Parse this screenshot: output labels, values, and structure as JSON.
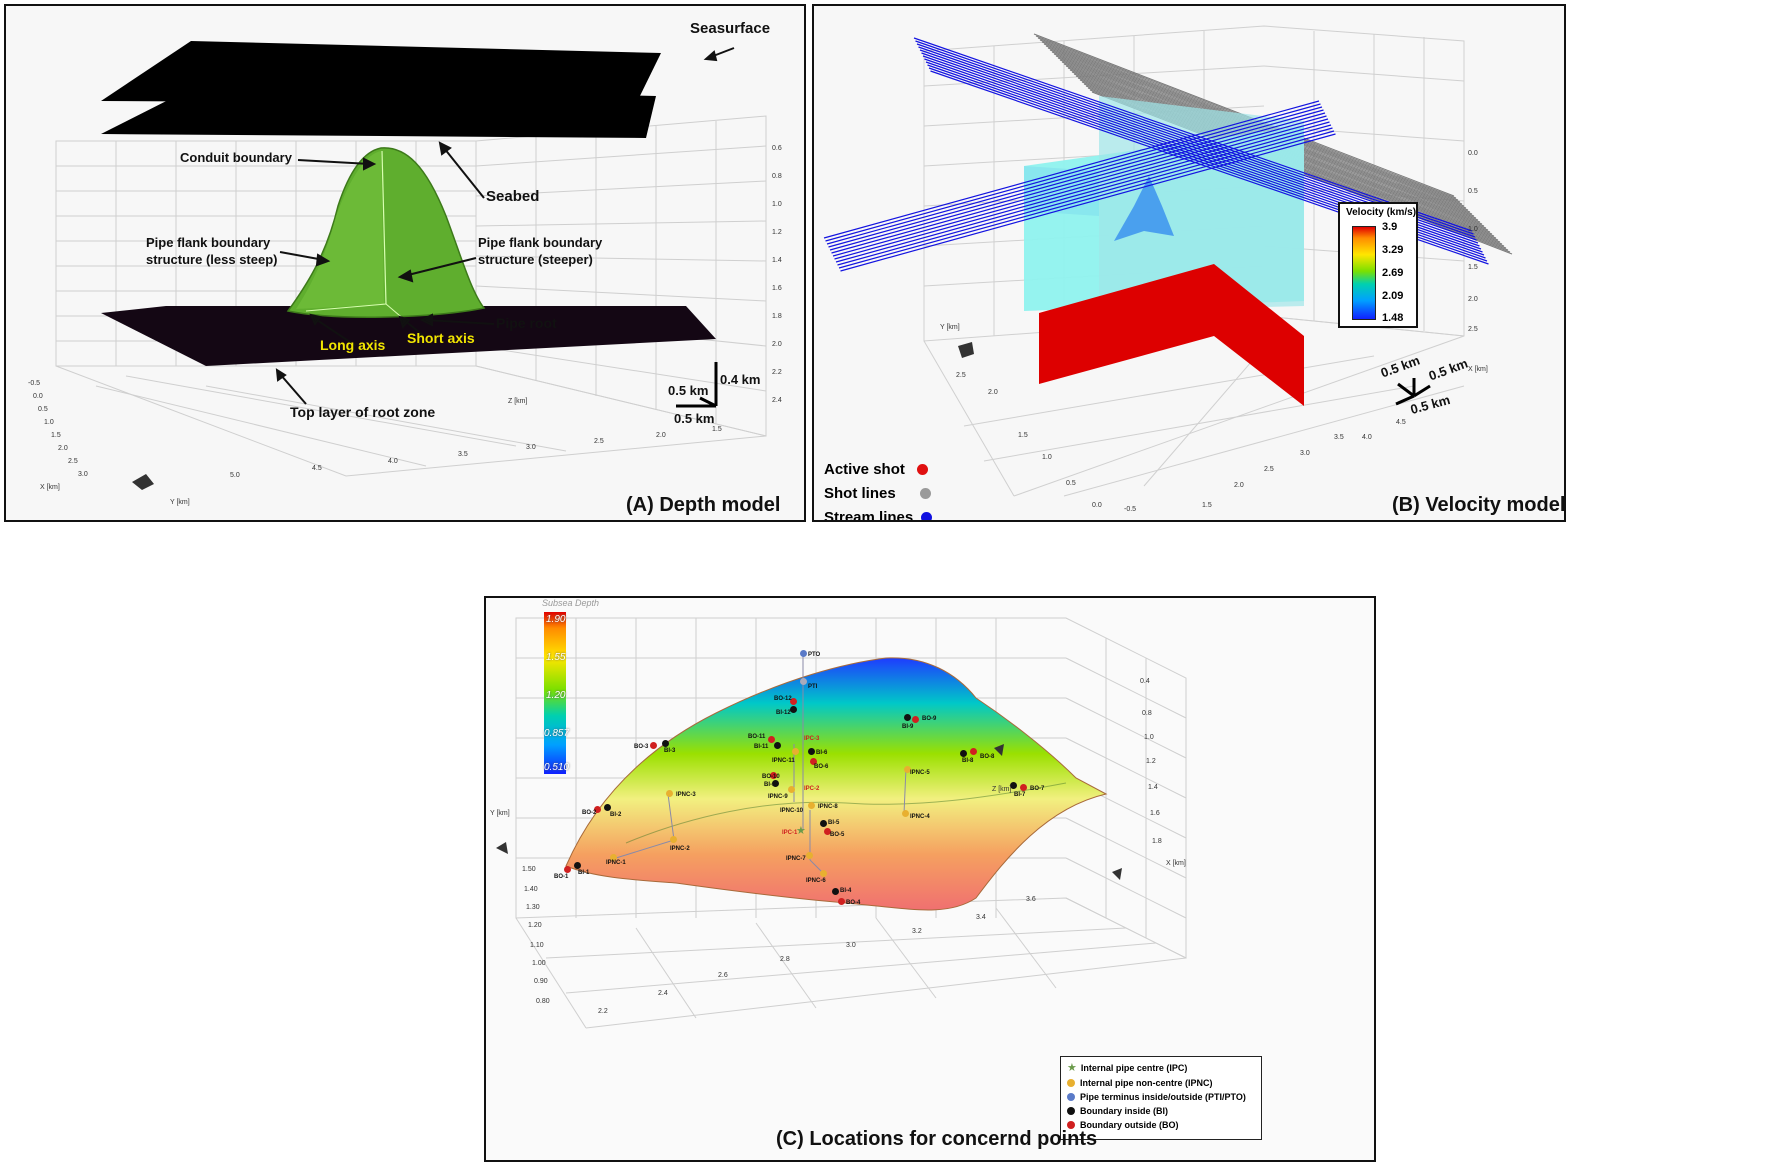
{
  "panel_a": {
    "seasurface": "Seasurface",
    "seabed": "Seabed",
    "conduit_boundary": "Conduit boundary",
    "flank_less_1": "Pipe flank boundary",
    "flank_less_2": "structure (less steep)",
    "flank_steep_1": "Pipe flank boundary",
    "flank_steep_2": "structure (steeper)",
    "pipe_root": "Pipe root",
    "long_axis": "Long axis",
    "short_axis": "Short axis",
    "top_layer": "Top layer of root zone",
    "scale_05_a": "0.5 km",
    "scale_04": "0.4 km",
    "scale_05_b": "0.5 km",
    "z_label": "Z [km]",
    "x_label": "X [km]",
    "y_label": "Y [km]",
    "z_ticks": [
      "0.6",
      "0.8",
      "1.0",
      "1.2",
      "1.4",
      "1.6",
      "1.8",
      "2.0",
      "2.2",
      "2.4"
    ],
    "x_ticks": [
      "-0.5",
      "0.0",
      "0.5",
      "1.0",
      "1.5",
      "2.0",
      "2.5",
      "3.0"
    ],
    "y_ticks": [
      "5.0",
      "4.5",
      "4.0",
      "3.5",
      "3.0",
      "2.5",
      "2.0",
      "1.5"
    ],
    "caption": "(A) Depth model"
  },
  "panel_b": {
    "colorbar_title": "Velocity (km/s)",
    "colorbar_ticks": [
      "3.9",
      "3.29",
      "2.69",
      "2.09",
      "1.48"
    ],
    "legend": [
      {
        "label": "Active shot",
        "color": "#e01010"
      },
      {
        "label": "Shot lines",
        "color": "#9a9a9a"
      },
      {
        "label": "Stream lines",
        "color": "#1010e0"
      }
    ],
    "scale_1": "0.5 km",
    "scale_2": "0.5 km",
    "scale_3": "0.5 km",
    "y_label": "Y [km]",
    "x_label": "X [km]",
    "right_ticks": [
      "0.0",
      "0.5",
      "1.0",
      "1.5",
      "2.0",
      "2.5"
    ],
    "bottom_ticks": [
      "4.5",
      "4.0",
      "3.5",
      "3.0",
      "2.5",
      "2.0",
      "1.5"
    ],
    "left_ticks": [
      "2.5",
      "2.0",
      "1.5",
      "1.0",
      "0.5",
      "0.0",
      "-0.5"
    ],
    "caption": "(B) Velocity model"
  },
  "panel_c": {
    "colorbar_title": "Subsea Depth",
    "colorbar_ticks": [
      "1.90",
      "1.55",
      "1.20",
      "0.857",
      "0.510"
    ],
    "points": {
      "PTO": "PTO",
      "PTI": "PTI",
      "BO12": "BO-12",
      "BI12": "BI-12",
      "IPC3": "IPC-3",
      "BO11": "BO-11",
      "BI11": "BI-11",
      "BI6": "BI-6",
      "BO6": "BO-6",
      "IPNC11": "IPNC-11",
      "BO10": "BO-10",
      "BI10": "BI-10",
      "IPC2": "IPC-2",
      "IPNC9": "IPNC-9",
      "IPNC10": "IPNC-10",
      "IPNC8": "IPNC-8",
      "BO3": "BO-3",
      "BI3": "BI-3",
      "IPNC3": "IPNC-3",
      "BO2": "BO-2",
      "BI2": "BI-2",
      "IPNC2": "IPNC-2",
      "IPNC1": "IPNC-1",
      "BO1": "BO-1",
      "BI1": "BI-1",
      "IPC1": "IPC-1",
      "BI5": "BI-5",
      "BO5": "BO-5",
      "IPNC7": "IPNC-7",
      "IPNC6": "IPNC-6",
      "BI4": "BI-4",
      "BO4": "BO-4",
      "BO9": "BO-9",
      "BI9": "BI-9",
      "IPNC5": "IPNC-5",
      "IPNC4": "IPNC-4",
      "BI8": "BI-8",
      "BO8": "BO-8",
      "BO7": "BO-7",
      "BI7": "BI-7"
    },
    "legend": [
      {
        "label": "Internal pipe centre (IPC)",
        "color": "#6a9a4a"
      },
      {
        "label": "Internal pipe non-centre (IPNC)",
        "color": "#e8b030"
      },
      {
        "label": "Pipe terminus inside/outside (PTI/PTO)",
        "color": "#5a7ac8"
      },
      {
        "label": "Boundary inside (BI)",
        "color": "#111111"
      },
      {
        "label": "Boundary outside (BO)",
        "color": "#d02020"
      }
    ],
    "y_label": "Y [km]",
    "x_label": "X [km]",
    "z_label": "Z [km]",
    "left_ticks": [
      "1.50",
      "1.40",
      "1.30",
      "1.20",
      "1.10",
      "1.00",
      "0.90",
      "0.80"
    ],
    "bottom_ticks": [
      "2.2",
      "2.4",
      "2.6",
      "2.8",
      "3.0",
      "3.2",
      "3.4",
      "3.6"
    ],
    "right_ticks": [
      "0.4",
      "0.8",
      "1.0",
      "1.2",
      "1.4",
      "1.6",
      "1.8"
    ],
    "caption": "(C) Locations for concernd points"
  },
  "colors": {
    "pipe_green": "#5fae2e",
    "velocity_red": "#dd0000",
    "velocity_cyan": "#8ff2ee",
    "stream_blue": "#1414e0"
  }
}
